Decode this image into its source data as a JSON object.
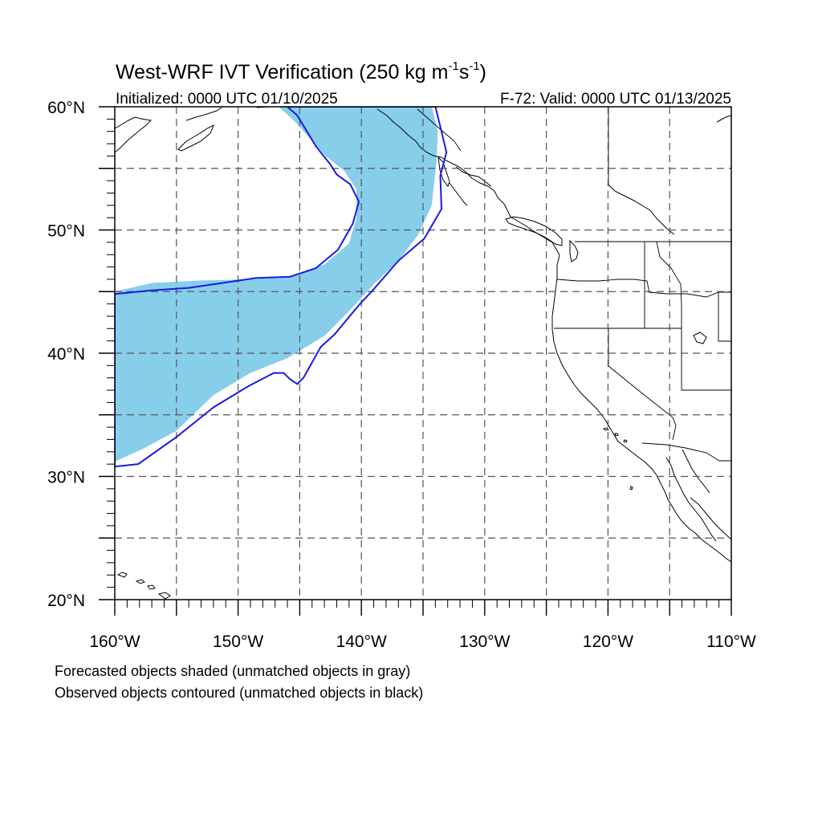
{
  "title": {
    "main": "West-WRF IVT Verification (250 kg m",
    "exp1": "-1",
    "mid": "s",
    "exp2": "-1",
    "close": ")"
  },
  "subtitle_left": "Initialized: 0000 UTC 01/10/2025",
  "subtitle_right": "F-72: Valid: 0000 UTC 01/13/2025",
  "map": {
    "projection": "cylindrical-equidistant",
    "lon_range": [
      -160,
      -110
    ],
    "lat_range": [
      20,
      60
    ],
    "grid_lons": [
      -155,
      -150,
      -145,
      -140,
      -135,
      -130,
      -125,
      -120,
      -115
    ],
    "grid_lats": [
      25,
      30,
      35,
      40,
      45,
      50,
      55
    ],
    "lat_labels": [
      {
        "value": 60,
        "text": "60°N"
      },
      {
        "value": 50,
        "text": "50°N"
      },
      {
        "value": 40,
        "text": "40°N"
      },
      {
        "value": 30,
        "text": "30°N"
      },
      {
        "value": 20,
        "text": "20°N"
      }
    ],
    "lon_labels": [
      {
        "value": -160,
        "text": "160°W"
      },
      {
        "value": -150,
        "text": "150°W"
      },
      {
        "value": -140,
        "text": "140°W"
      },
      {
        "value": -130,
        "text": "130°W"
      },
      {
        "value": -120,
        "text": "120°W"
      },
      {
        "value": -110,
        "text": "110°W"
      }
    ],
    "colors": {
      "forecast_fill": "#87CEEB",
      "observed_contour": "#1a1ae6",
      "coastline": "#000000",
      "grid": "#555555"
    },
    "forecast_object": [
      [
        -160,
        45
      ],
      [
        -157,
        45.7
      ],
      [
        -153,
        45.9
      ],
      [
        -149,
        46
      ],
      [
        -146,
        46.2
      ],
      [
        -143,
        47.2
      ],
      [
        -141,
        48.9
      ],
      [
        -140.4,
        51
      ],
      [
        -140.4,
        53.3
      ],
      [
        -141.4,
        54.8
      ],
      [
        -142.9,
        56
      ],
      [
        -145.4,
        58.8
      ],
      [
        -146.7,
        60
      ],
      [
        -134.3,
        60
      ],
      [
        -133.8,
        58
      ],
      [
        -133.9,
        55.6
      ],
      [
        -134.3,
        52
      ],
      [
        -135.4,
        49.6
      ],
      [
        -137,
        47.5
      ],
      [
        -139,
        45.6
      ],
      [
        -141,
        43.4
      ],
      [
        -143,
        41.4
      ],
      [
        -146,
        39.6
      ],
      [
        -149,
        38.4
      ],
      [
        -152,
        36.6
      ],
      [
        -155,
        33.7
      ],
      [
        -157.6,
        32.3
      ],
      [
        -160,
        31.2
      ]
    ],
    "observed_object": [
      [
        -160,
        44.8
      ],
      [
        -157,
        45.1
      ],
      [
        -154,
        45.3
      ],
      [
        -150.6,
        45.8
      ],
      [
        -148.6,
        46.1
      ],
      [
        -145.8,
        46.2
      ],
      [
        -143.7,
        46.9
      ],
      [
        -141.9,
        48.4
      ],
      [
        -140.7,
        50.5
      ],
      [
        -140.2,
        52.3
      ],
      [
        -140.9,
        53.7
      ],
      [
        -142,
        54.5
      ],
      [
        -142.5,
        55.3
      ],
      [
        -143.7,
        56.8
      ],
      [
        -145.2,
        59.3
      ],
      [
        -146,
        60
      ],
      [
        -134,
        60
      ],
      [
        -133.5,
        58
      ],
      [
        -133.1,
        56.3
      ],
      [
        -133.6,
        54.4
      ],
      [
        -133.5,
        51.7
      ],
      [
        -134.9,
        49.3
      ],
      [
        -137,
        47.5
      ],
      [
        -139,
        45.2
      ],
      [
        -140.2,
        43.9
      ],
      [
        -142.2,
        41.5
      ],
      [
        -143.3,
        40.5
      ],
      [
        -144.7,
        38
      ],
      [
        -145.2,
        37.5
      ],
      [
        -145.8,
        37.9
      ],
      [
        -146.3,
        38.4
      ],
      [
        -147.1,
        38.4
      ],
      [
        -149.2,
        37.3
      ],
      [
        -152,
        35.6
      ],
      [
        -155,
        33.2
      ],
      [
        -158.1,
        31
      ],
      [
        -160,
        30.8
      ]
    ]
  },
  "footnote_1": "Forecasted objects shaded (unmatched objects in gray)",
  "footnote_2": "Observed objects contoured (unmatched objects in black)"
}
